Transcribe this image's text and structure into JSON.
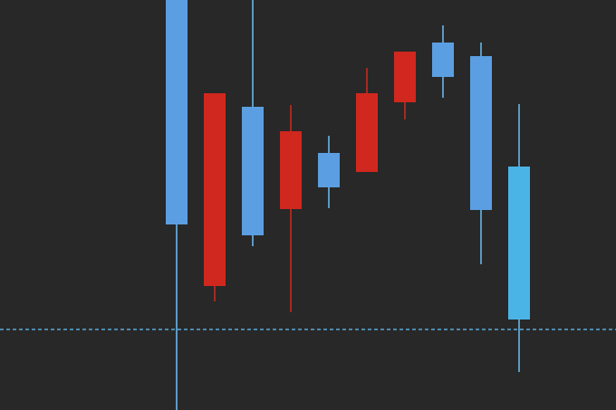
{
  "chart_data": {
    "type": "candlestick",
    "title": "",
    "xlabel": "",
    "ylabel": "",
    "ylim": [
      0,
      453
    ],
    "grid": false,
    "colors": {
      "background": "#282828",
      "up": "#d0281e",
      "down": "#5b9fe2",
      "reference_line": "#5aa8d8"
    },
    "candles": [
      {
        "open": 458,
        "high": 473,
        "low": -7,
        "close": 205
      },
      {
        "open": 137,
        "high": 350,
        "low": 120,
        "close": 350
      },
      {
        "open": 335,
        "high": 453,
        "low": 181,
        "close": 193
      },
      {
        "open": 222,
        "high": 337,
        "low": 108,
        "close": 308
      },
      {
        "open": 284,
        "high": 303,
        "low": 223,
        "close": 246
      },
      {
        "open": 263,
        "high": 378,
        "low": 263,
        "close": 350
      },
      {
        "open": 340,
        "high": 396,
        "low": 321,
        "close": 396
      },
      {
        "open": 406,
        "high": 425,
        "low": 345,
        "close": 368
      },
      {
        "open": 391,
        "high": 406,
        "low": 161,
        "close": 221
      },
      {
        "open": 269,
        "high": 338,
        "low": 42,
        "close": 100
      }
    ],
    "reference_line": {
      "value": 89,
      "style": "dashed"
    }
  }
}
